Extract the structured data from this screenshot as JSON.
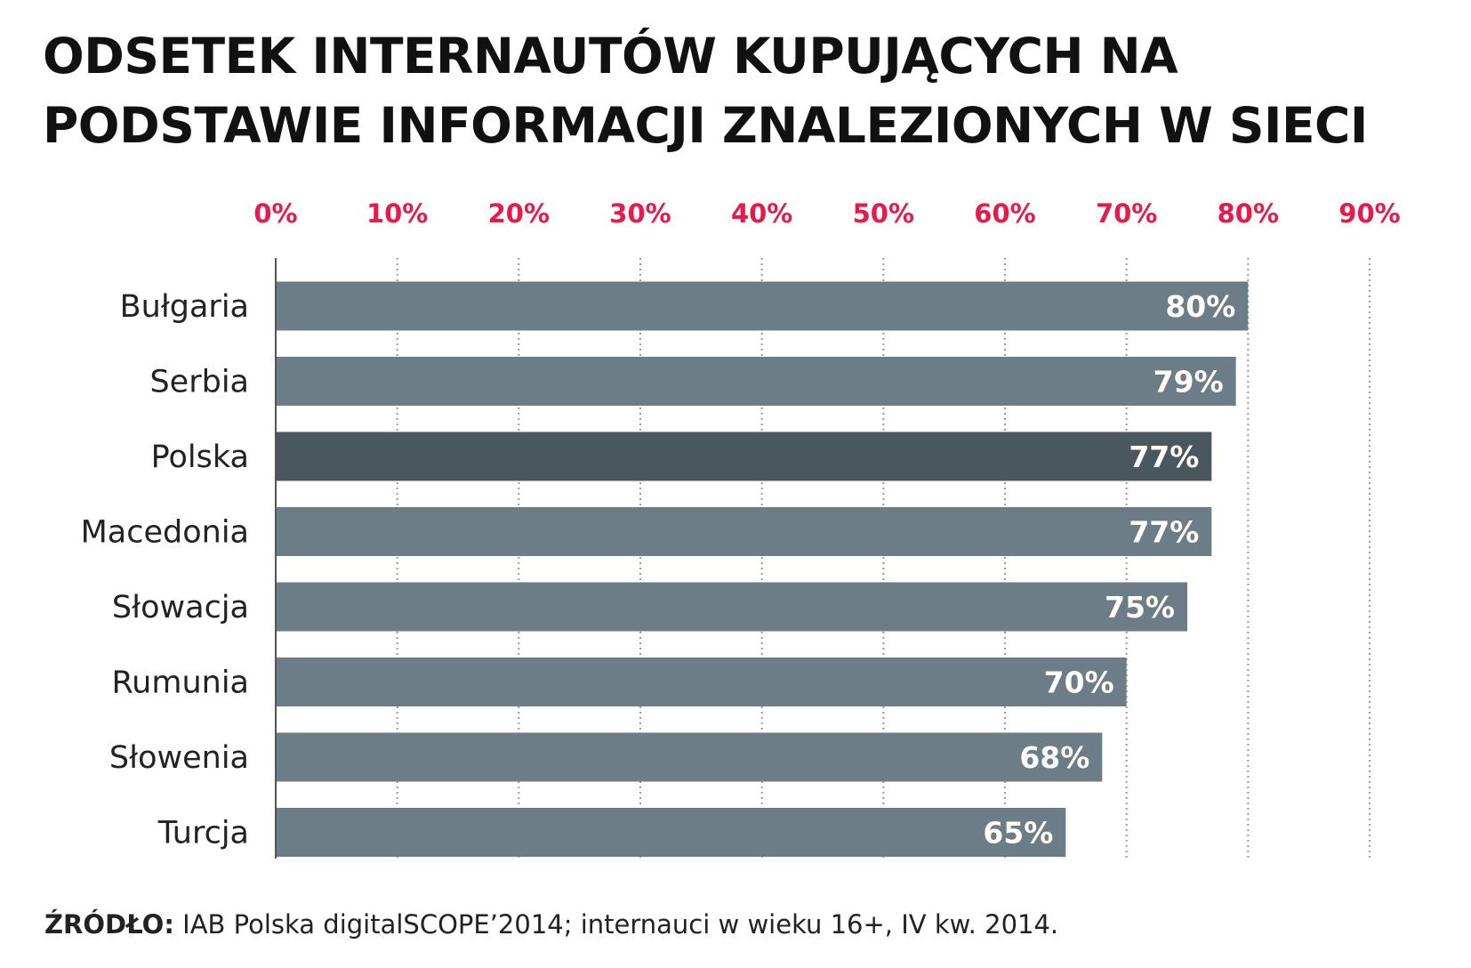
{
  "title": "ODSETEK INTERNAUTÓW KUPUJĄCYCH NA PODSTAWIE INFORMACJI ZNALEZIONYCH W SIECI",
  "source": {
    "label": "ŹRÓDŁO:",
    "text": " IAB Polska digitalSCOPE’2014; internauci w wieku 16+, IV kw. 2014."
  },
  "colors": {
    "bar": "#6d7d87",
    "bar_highlight": "#4a575f",
    "tick_label": "#e8194b",
    "value_label": "#ffffff",
    "category_label": "#222222",
    "grid": "#9a9a9a"
  },
  "chart_data": {
    "type": "bar",
    "orientation": "horizontal",
    "categories": [
      "Bułgaria",
      "Serbia",
      "Polska",
      "Macedonia",
      "Słowacja",
      "Rumunia",
      "Słowenia",
      "Turcja"
    ],
    "values": [
      80,
      79,
      77,
      77,
      75,
      70,
      68,
      65
    ],
    "value_labels": [
      "80%",
      "79%",
      "77%",
      "77%",
      "75%",
      "70%",
      "68%",
      "65%"
    ],
    "highlight": "Polska",
    "x_ticks": [
      0,
      10,
      20,
      30,
      40,
      50,
      60,
      70,
      80,
      90
    ],
    "x_tick_labels": [
      "0%",
      "10%",
      "20%",
      "30%",
      "40%",
      "50%",
      "60%",
      "70%",
      "80%",
      "90%"
    ],
    "xlim": [
      0,
      90
    ],
    "x_axis_position": "top",
    "grid": true,
    "grid_style": "dotted vertical"
  }
}
